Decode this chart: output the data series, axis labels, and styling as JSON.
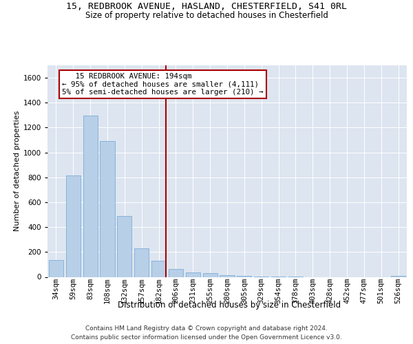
{
  "title1": "15, REDBROOK AVENUE, HASLAND, CHESTERFIELD, S41 0RL",
  "title2": "Size of property relative to detached houses in Chesterfield",
  "xlabel": "Distribution of detached houses by size in Chesterfield",
  "ylabel": "Number of detached properties",
  "footer1": "Contains HM Land Registry data © Crown copyright and database right 2024.",
  "footer2": "Contains public sector information licensed under the Open Government Licence v3.0.",
  "bar_labels": [
    "34sqm",
    "59sqm",
    "83sqm",
    "108sqm",
    "132sqm",
    "157sqm",
    "182sqm",
    "206sqm",
    "231sqm",
    "255sqm",
    "280sqm",
    "305sqm",
    "329sqm",
    "354sqm",
    "378sqm",
    "403sqm",
    "428sqm",
    "452sqm",
    "477sqm",
    "501sqm",
    "526sqm"
  ],
  "bar_values": [
    135,
    815,
    1295,
    1090,
    490,
    230,
    130,
    65,
    38,
    28,
    15,
    10,
    5,
    3,
    2,
    0,
    0,
    0,
    0,
    0,
    10
  ],
  "bar_color": "#b8cfe8",
  "bar_edgecolor": "#7aadd6",
  "vline_index": 6,
  "vline_color": "#aa0000",
  "annotation_line1": "   15 REDBROOK AVENUE: 194sqm",
  "annotation_line2": "← 95% of detached houses are smaller (4,111)",
  "annotation_line3": "5% of semi-detached houses are larger (210) →",
  "annotation_border_color": "#aa0000",
  "ylim_max": 1700,
  "yticks": [
    0,
    200,
    400,
    600,
    800,
    1000,
    1200,
    1400,
    1600
  ],
  "bg_color": "#dde5f0",
  "title_fontsize": 9.5,
  "subtitle_fontsize": 8.5,
  "tick_fontsize": 7.5,
  "ylabel_fontsize": 8,
  "xlabel_fontsize": 8.5,
  "footer_fontsize": 6.5
}
